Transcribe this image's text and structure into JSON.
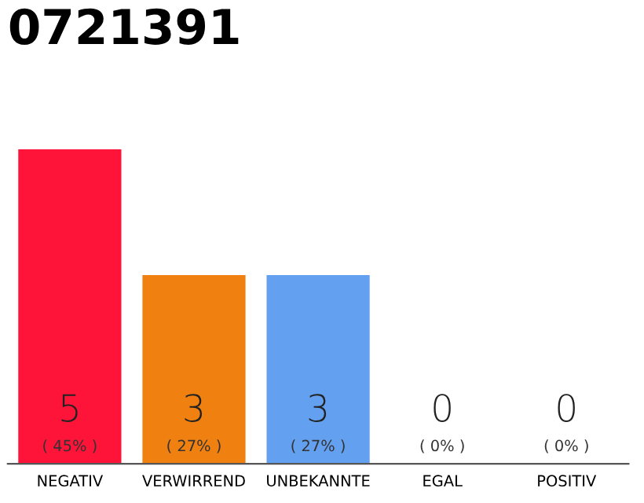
{
  "chart_data": {
    "type": "bar",
    "title": "0721391",
    "categories": [
      "NEGATIV",
      "VERWIRREND",
      "UNBEKANNTE",
      "EGAL",
      "POSITIV"
    ],
    "values": [
      5,
      3,
      3,
      0,
      0
    ],
    "colors": [
      "#ff1439",
      "#f08010",
      "#64a0f0",
      "#bbbbbb",
      "#bbbbbb"
    ],
    "value_labels": [
      "5\n( 45% )",
      "3\n( 27% )",
      "3\n( 27% )",
      "0\n( 0% )",
      "0\n( 0% )"
    ],
    "ylim": [
      0,
      5
    ],
    "grid": false,
    "legend": false
  }
}
